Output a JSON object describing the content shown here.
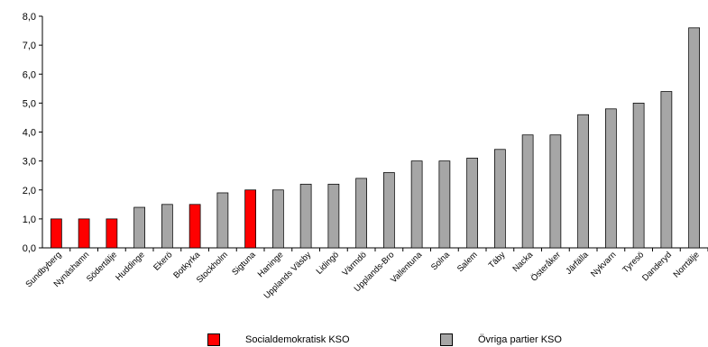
{
  "chart_data": {
    "type": "bar",
    "categories": [
      "Sundbyberg",
      "Nynäshamn",
      "Södertälje",
      "Huddinge",
      "Ekerö",
      "Botkyrka",
      "Stockholm",
      "Sigtuna",
      "Haninge",
      "Upplands Väsby",
      "Lidingö",
      "Värmdö",
      "Upplands-Bro",
      "Vallentuna",
      "Solna",
      "Salem",
      "Täby",
      "Nacka",
      "Österåker",
      "Järfälla",
      "Nykvarn",
      "Tyresö",
      "Danderyd",
      "Norrtälje"
    ],
    "values": [
      1.0,
      1.0,
      1.0,
      1.4,
      1.5,
      1.5,
      1.9,
      2.0,
      2.0,
      2.2,
      2.2,
      2.4,
      2.6,
      3.0,
      3.0,
      3.1,
      3.4,
      3.9,
      3.9,
      4.6,
      4.8,
      5.0,
      5.4,
      7.6
    ],
    "groups": [
      "s",
      "s",
      "s",
      "o",
      "o",
      "s",
      "o",
      "s",
      "o",
      "o",
      "o",
      "o",
      "o",
      "o",
      "o",
      "o",
      "o",
      "o",
      "o",
      "o",
      "o",
      "o",
      "o",
      "o"
    ],
    "ylim": [
      0,
      8
    ],
    "yticks": [
      "0,0",
      "1,0",
      "2,0",
      "3,0",
      "4,0",
      "5,0",
      "6,0",
      "7,0",
      "8,0"
    ],
    "grid": false,
    "legend_position": "bottom",
    "series": [
      {
        "key": "s",
        "name": "Socialdemokratisk KSO",
        "color": "#ff0000"
      },
      {
        "key": "o",
        "name": "Övriga partier KSO",
        "color": "#a6a6a6"
      }
    ]
  }
}
